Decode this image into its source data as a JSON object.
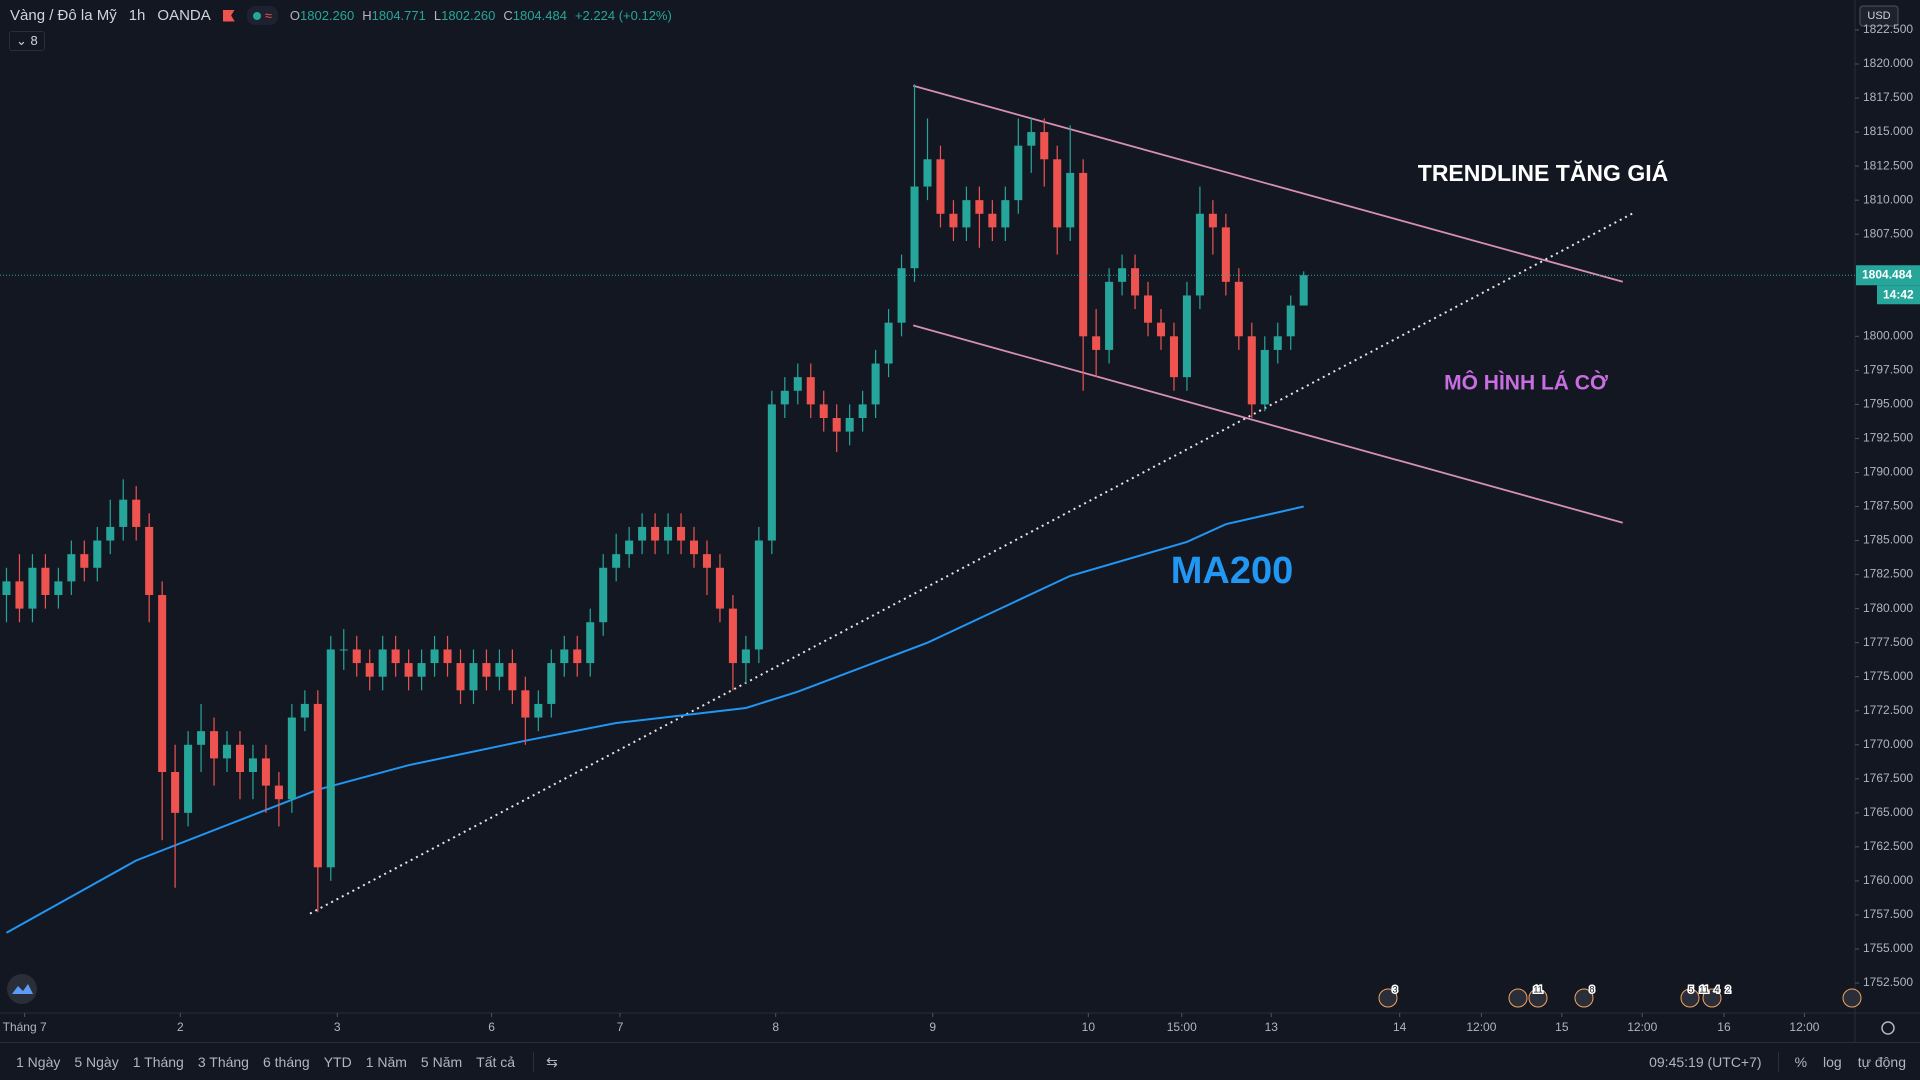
{
  "chart_data": {
    "type": "candlestick",
    "header": {
      "symbol": "Vàng / Đô la Mỹ",
      "interval": "1h",
      "source": "OANDA",
      "ohlc": [
        {
          "prefix": "O",
          "value": "1802.260"
        },
        {
          "prefix": "H",
          "value": "1804.771"
        },
        {
          "prefix": "L",
          "value": "1802.260"
        },
        {
          "prefix": "C",
          "value": "1804.484"
        }
      ],
      "change": "+2.224 (+0.12%)",
      "indicator_count": "8"
    },
    "currency": "USD",
    "colors": {
      "up": "#26a69a",
      "down": "#ef5350"
    },
    "open": [
      1781,
      1782,
      1780,
      1783,
      1781,
      1782,
      1784,
      1783,
      1785,
      1786,
      1788,
      1786,
      1781,
      1768,
      1765,
      1770,
      1771,
      1769,
      1770,
      1768,
      1769,
      1767,
      1766,
      1772,
      1773,
      1761,
      1777,
      1777,
      1776,
      1775,
      1777,
      1776,
      1775,
      1776,
      1777,
      1776,
      1774,
      1776,
      1775,
      1776,
      1774,
      1772,
      1773,
      1776,
      1777,
      1776,
      1779,
      1783,
      1784,
      1785,
      1786,
      1785,
      1786,
      1785,
      1784,
      1783,
      1780,
      1776,
      1777,
      1785,
      1795,
      1796,
      1797,
      1795,
      1794,
      1793,
      1794,
      1795,
      1798,
      1801,
      1805,
      1811,
      1813,
      1809,
      1808,
      1810,
      1809,
      1808,
      1810,
      1814,
      1815,
      1813,
      1808,
      1812,
      1800,
      1799,
      1804,
      1805,
      1803,
      1801,
      1800,
      1797,
      1803,
      1809,
      1808,
      1804,
      1800,
      1795,
      1799,
      1800,
      1802.26
    ],
    "high": [
      1783,
      1784,
      1784,
      1784,
      1783,
      1785,
      1785,
      1786,
      1788,
      1789.5,
      1789,
      1787,
      1782,
      1770,
      1771,
      1773,
      1772,
      1771,
      1771,
      1770,
      1770,
      1768,
      1773,
      1774,
      1774,
      1778,
      1778.5,
      1778,
      1777,
      1778,
      1778,
      1777,
      1777,
      1778,
      1778,
      1777,
      1777,
      1777,
      1777,
      1777,
      1775,
      1774,
      1777,
      1778,
      1778,
      1780,
      1784,
      1785.5,
      1786,
      1787,
      1787,
      1787,
      1787,
      1786,
      1785,
      1784,
      1781,
      1778,
      1786,
      1796,
      1797,
      1798,
      1798,
      1796,
      1795,
      1795,
      1796,
      1799,
      1802,
      1806,
      1818.5,
      1816,
      1814,
      1810,
      1811,
      1811,
      1810,
      1811,
      1816,
      1816,
      1816,
      1814,
      1815.5,
      1813,
      1802,
      1805,
      1806,
      1806,
      1804,
      1802,
      1801,
      1804,
      1811,
      1810,
      1809,
      1805,
      1801,
      1800,
      1801,
      1803,
      1804.771
    ],
    "low": [
      1779,
      1779,
      1779,
      1780,
      1780,
      1781,
      1782,
      1782,
      1784,
      1785,
      1785,
      1779,
      1763,
      1759.5,
      1764,
      1768,
      1767,
      1768,
      1766,
      1766,
      1765,
      1764,
      1765,
      1771,
      1757.7,
      1760,
      1775.5,
      1775,
      1774,
      1774,
      1775,
      1774,
      1774,
      1775,
      1775,
      1773,
      1773,
      1774,
      1774,
      1773,
      1770,
      1771,
      1772,
      1775,
      1775,
      1775,
      1778,
      1782,
      1783,
      1784,
      1784,
      1784,
      1784,
      1783,
      1781,
      1779,
      1774,
      1774.5,
      1776,
      1784,
      1794,
      1795,
      1794,
      1793,
      1791.5,
      1792,
      1793,
      1794,
      1797,
      1800,
      1804,
      1810,
      1808,
      1807,
      1807,
      1806.5,
      1807,
      1807,
      1809,
      1812,
      1811,
      1806,
      1807,
      1796,
      1797,
      1798,
      1803,
      1802,
      1800,
      1799,
      1796,
      1796,
      1802,
      1806,
      1803,
      1799,
      1794,
      1794.5,
      1798,
      1799,
      1802.26
    ],
    "close": [
      1782,
      1780,
      1783,
      1781,
      1782,
      1784,
      1783,
      1785,
      1786,
      1788,
      1786,
      1781,
      1768,
      1765,
      1770,
      1771,
      1769,
      1770,
      1768,
      1769,
      1767,
      1766,
      1772,
      1773,
      1761,
      1777,
      1777,
      1776,
      1775,
      1777,
      1776,
      1775,
      1776,
      1777,
      1776,
      1774,
      1776,
      1775,
      1776,
      1774,
      1772,
      1773,
      1776,
      1777,
      1776,
      1779,
      1783,
      1784,
      1785,
      1786,
      1785,
      1786,
      1785,
      1784,
      1783,
      1780,
      1776,
      1777,
      1785,
      1795,
      1796,
      1797,
      1795,
      1794,
      1793,
      1794,
      1795,
      1798,
      1801,
      1805,
      1811,
      1813,
      1809,
      1808,
      1810,
      1809,
      1808,
      1810,
      1814,
      1815,
      1813,
      1808,
      1812,
      1800,
      1799,
      1804,
      1805,
      1803,
      1801,
      1800,
      1797,
      1803,
      1809,
      1808,
      1804,
      1800,
      1795,
      1799,
      1800,
      1802.26,
      1804.484
    ],
    "ma": {
      "name": "MA200",
      "color": "#2196f3",
      "x": [
        0,
        10,
        24,
        31,
        40,
        47,
        57,
        61,
        71,
        82,
        91,
        94,
        100
      ],
      "values": [
        1756.2,
        1761.5,
        1766.7,
        1768.5,
        1770.3,
        1771.6,
        1772.7,
        1773.9,
        1777.5,
        1782.4,
        1784.9,
        1786.2,
        1787.5
      ]
    },
    "drawings": [
      {
        "style": "solid",
        "color": "#d68fb4",
        "x": [
          70.4,
          125.1
        ],
        "y": [
          1818.4,
          1804.0
        ]
      },
      {
        "style": "solid",
        "color": "#d68fb4",
        "x": [
          70.4,
          125.1
        ],
        "y": [
          1800.8,
          1786.3
        ]
      },
      {
        "style": "dotted",
        "color": "#e6e6e6",
        "x": [
          23.9,
          126
        ],
        "y": [
          1757.6,
          1809.1
        ]
      }
    ],
    "annotations": [
      {
        "text": "TRENDLINE TĂNG GIÁ",
        "color": "#ffffff"
      },
      {
        "text": "MÔ HÌNH LÁ CỜ",
        "color": "#c86ee0"
      }
    ],
    "last_price": {
      "value": 1804.484,
      "label": "1804.484"
    },
    "countdown": "14:42",
    "xlim": [
      0,
      143
    ],
    "xticks": [
      {
        "value": 1.9,
        "label": "Tháng 7"
      },
      {
        "value": 13.9,
        "label": "2"
      },
      {
        "value": 26,
        "label": "3"
      },
      {
        "value": 37.9,
        "label": "6"
      },
      {
        "value": 47.8,
        "label": "7"
      },
      {
        "value": 59.8,
        "label": "8"
      },
      {
        "value": 71.9,
        "label": "9"
      },
      {
        "value": 83.9,
        "label": "10"
      },
      {
        "value": 91.1,
        "label": "15:00"
      },
      {
        "value": 98,
        "label": "13"
      },
      {
        "value": 107.9,
        "label": "14"
      },
      {
        "value": 114.2,
        "label": "12:00"
      },
      {
        "value": 120.4,
        "label": "15"
      },
      {
        "value": 126.6,
        "label": "12:00"
      },
      {
        "value": 132.9,
        "label": "16"
      },
      {
        "value": 139.1,
        "label": "12:00"
      }
    ],
    "ylim": [
      1750.3,
      1824.7
    ],
    "yticks": [
      {
        "value": 1752.5,
        "label": "1752.500"
      },
      {
        "value": 1755,
        "label": "1755.000"
      },
      {
        "value": 1757.5,
        "label": "1757.500"
      },
      {
        "value": 1760,
        "label": "1760.000"
      },
      {
        "value": 1762.5,
        "label": "1762.500"
      },
      {
        "value": 1765,
        "label": "1765.000"
      },
      {
        "value": 1767.5,
        "label": "1767.500"
      },
      {
        "value": 1770,
        "label": "1770.000"
      },
      {
        "value": 1772.5,
        "label": "1772.500"
      },
      {
        "value": 1775,
        "label": "1775.000"
      },
      {
        "value": 1777.5,
        "label": "1777.500"
      },
      {
        "value": 1780,
        "label": "1780.000"
      },
      {
        "value": 1782.5,
        "label": "1782.500"
      },
      {
        "value": 1785,
        "label": "1785.000"
      },
      {
        "value": 1787.5,
        "label": "1787.500"
      },
      {
        "value": 1790,
        "label": "1790.000"
      },
      {
        "value": 1792.5,
        "label": "1792.500"
      },
      {
        "value": 1795,
        "label": "1795.000"
      },
      {
        "value": 1797.5,
        "label": "1797.500"
      },
      {
        "value": 1800,
        "label": "1800.000"
      },
      {
        "value": 1807.5,
        "label": "1807.500"
      },
      {
        "value": 1810,
        "label": "1810.000"
      },
      {
        "value": 1812.5,
        "label": "1812.500"
      },
      {
        "value": 1815,
        "label": "1815.000"
      },
      {
        "value": 1817.5,
        "label": "1817.500"
      },
      {
        "value": 1820,
        "label": "1820.000"
      },
      {
        "value": 1822.5,
        "label": "1822.500"
      }
    ],
    "grid": false,
    "events": [
      "3",
      "11",
      "8",
      "5",
      "11",
      "4",
      "2"
    ]
  },
  "toolbar": {
    "ranges": [
      "1 Ngày",
      "5 Ngày",
      "1 Tháng",
      "3 Tháng",
      "6 tháng",
      "YTD",
      "1 Năm",
      "5 Năm",
      "Tất cả"
    ],
    "time": "09:45:19 (UTC+7)",
    "scale_options": [
      "%",
      "log",
      "tự động"
    ]
  }
}
